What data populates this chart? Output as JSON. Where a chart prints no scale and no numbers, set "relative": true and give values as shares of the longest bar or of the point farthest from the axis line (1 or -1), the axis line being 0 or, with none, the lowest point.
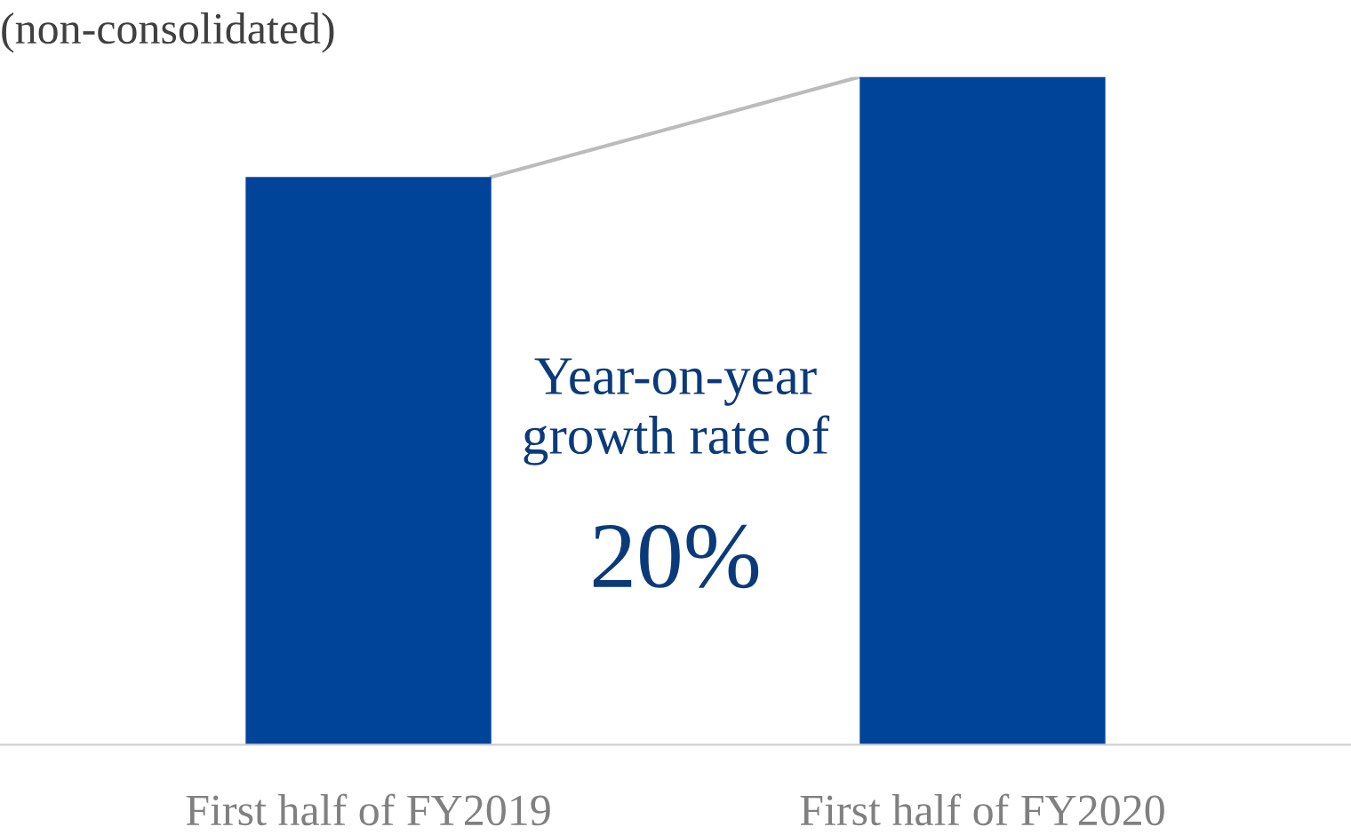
{
  "chart_data": {
    "type": "bar",
    "title": "(non-consolidated)",
    "categories": [
      "First half of FY2019",
      "First half of FY2020"
    ],
    "values": [
      0.85,
      1
    ],
    "color": "#00449a",
    "relative": true,
    "annotations": [
      "Year-on-year growth rate of",
      "20%"
    ]
  }
}
